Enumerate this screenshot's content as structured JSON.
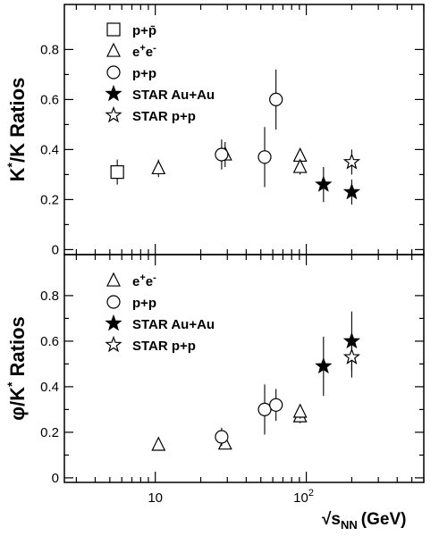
{
  "chart_data": {
    "type": "scatter",
    "xlabel_base": "√s",
    "xlabel_sub": "NN",
    "xlabel_unit": "(GeV)",
    "xscale": "log",
    "xlim": [
      2.5,
      600
    ],
    "xtick_labels": [
      "10",
      "10",
      "2"
    ],
    "ytick_labels": [
      "0",
      "0.2",
      "0.4",
      "0.6",
      "0.8"
    ],
    "panels": [
      {
        "ylabel_main": "K",
        "ylabel_sup1": "*",
        "ylabel_mid": "/K Ratios",
        "ylim": [
          -0.02,
          0.98
        ],
        "legend_position": "top-left",
        "series": [
          {
            "name": "p+p̄",
            "marker": "open-square",
            "points": [
              [
                5.6,
                0.31
              ]
            ],
            "err": [
              0.05
            ]
          },
          {
            "name": "e⁺e⁻",
            "name_base": "e",
            "name_sup1": "+",
            "name_mid": "e",
            "name_sup2": "-",
            "marker": "open-triangle",
            "points": [
              [
                10.5,
                0.325
              ],
              [
                29,
                0.38
              ],
              [
                91,
                0.375
              ],
              [
                91,
                0.33
              ]
            ],
            "err": [
              0.035,
              0.05,
              0.03,
              0.03
            ]
          },
          {
            "name": "p+p",
            "marker": "open-circle",
            "points": [
              [
                27.5,
                0.38
              ],
              [
                53,
                0.37
              ],
              [
                63,
                0.6
              ]
            ],
            "err": [
              0.06,
              0.12,
              0.12
            ]
          },
          {
            "name": "STAR Au+Au",
            "marker": "filled-star",
            "points": [
              [
                130,
                0.26
              ],
              [
                200,
                0.23
              ]
            ],
            "err": [
              0.07,
              0.05
            ]
          },
          {
            "name": "STAR p+p",
            "marker": "open-star",
            "points": [
              [
                200,
                0.35
              ]
            ],
            "err": [
              0.05
            ]
          }
        ]
      },
      {
        "ylabel_main": "φ/K",
        "ylabel_sup1": "*",
        "ylabel_mid": " Ratios",
        "ylim": [
          -0.02,
          0.98
        ],
        "legend_position": "top-left",
        "series": [
          {
            "name": "e⁺e⁻",
            "name_base": "e",
            "name_sup1": "+",
            "name_mid": "e",
            "name_sup2": "-",
            "marker": "open-triangle",
            "points": [
              [
                10.5,
                0.145
              ],
              [
                29,
                0.15
              ],
              [
                91,
                0.27
              ],
              [
                91,
                0.29
              ]
            ],
            "err": [
              0.01,
              0.02,
              0.03,
              0.03
            ]
          },
          {
            "name": "p+p",
            "marker": "open-circle",
            "points": [
              [
                27.5,
                0.18
              ],
              [
                53,
                0.3
              ],
              [
                63,
                0.32
              ]
            ],
            "err": [
              0.04,
              0.11,
              0.07
            ]
          },
          {
            "name": "STAR Au+Au",
            "marker": "filled-star",
            "points": [
              [
                130,
                0.49
              ],
              [
                200,
                0.6
              ]
            ],
            "err": [
              0.13,
              0.13
            ]
          },
          {
            "name": "STAR p+p",
            "marker": "open-star",
            "points": [
              [
                200,
                0.53
              ]
            ],
            "err": [
              0.09
            ]
          }
        ]
      }
    ]
  }
}
